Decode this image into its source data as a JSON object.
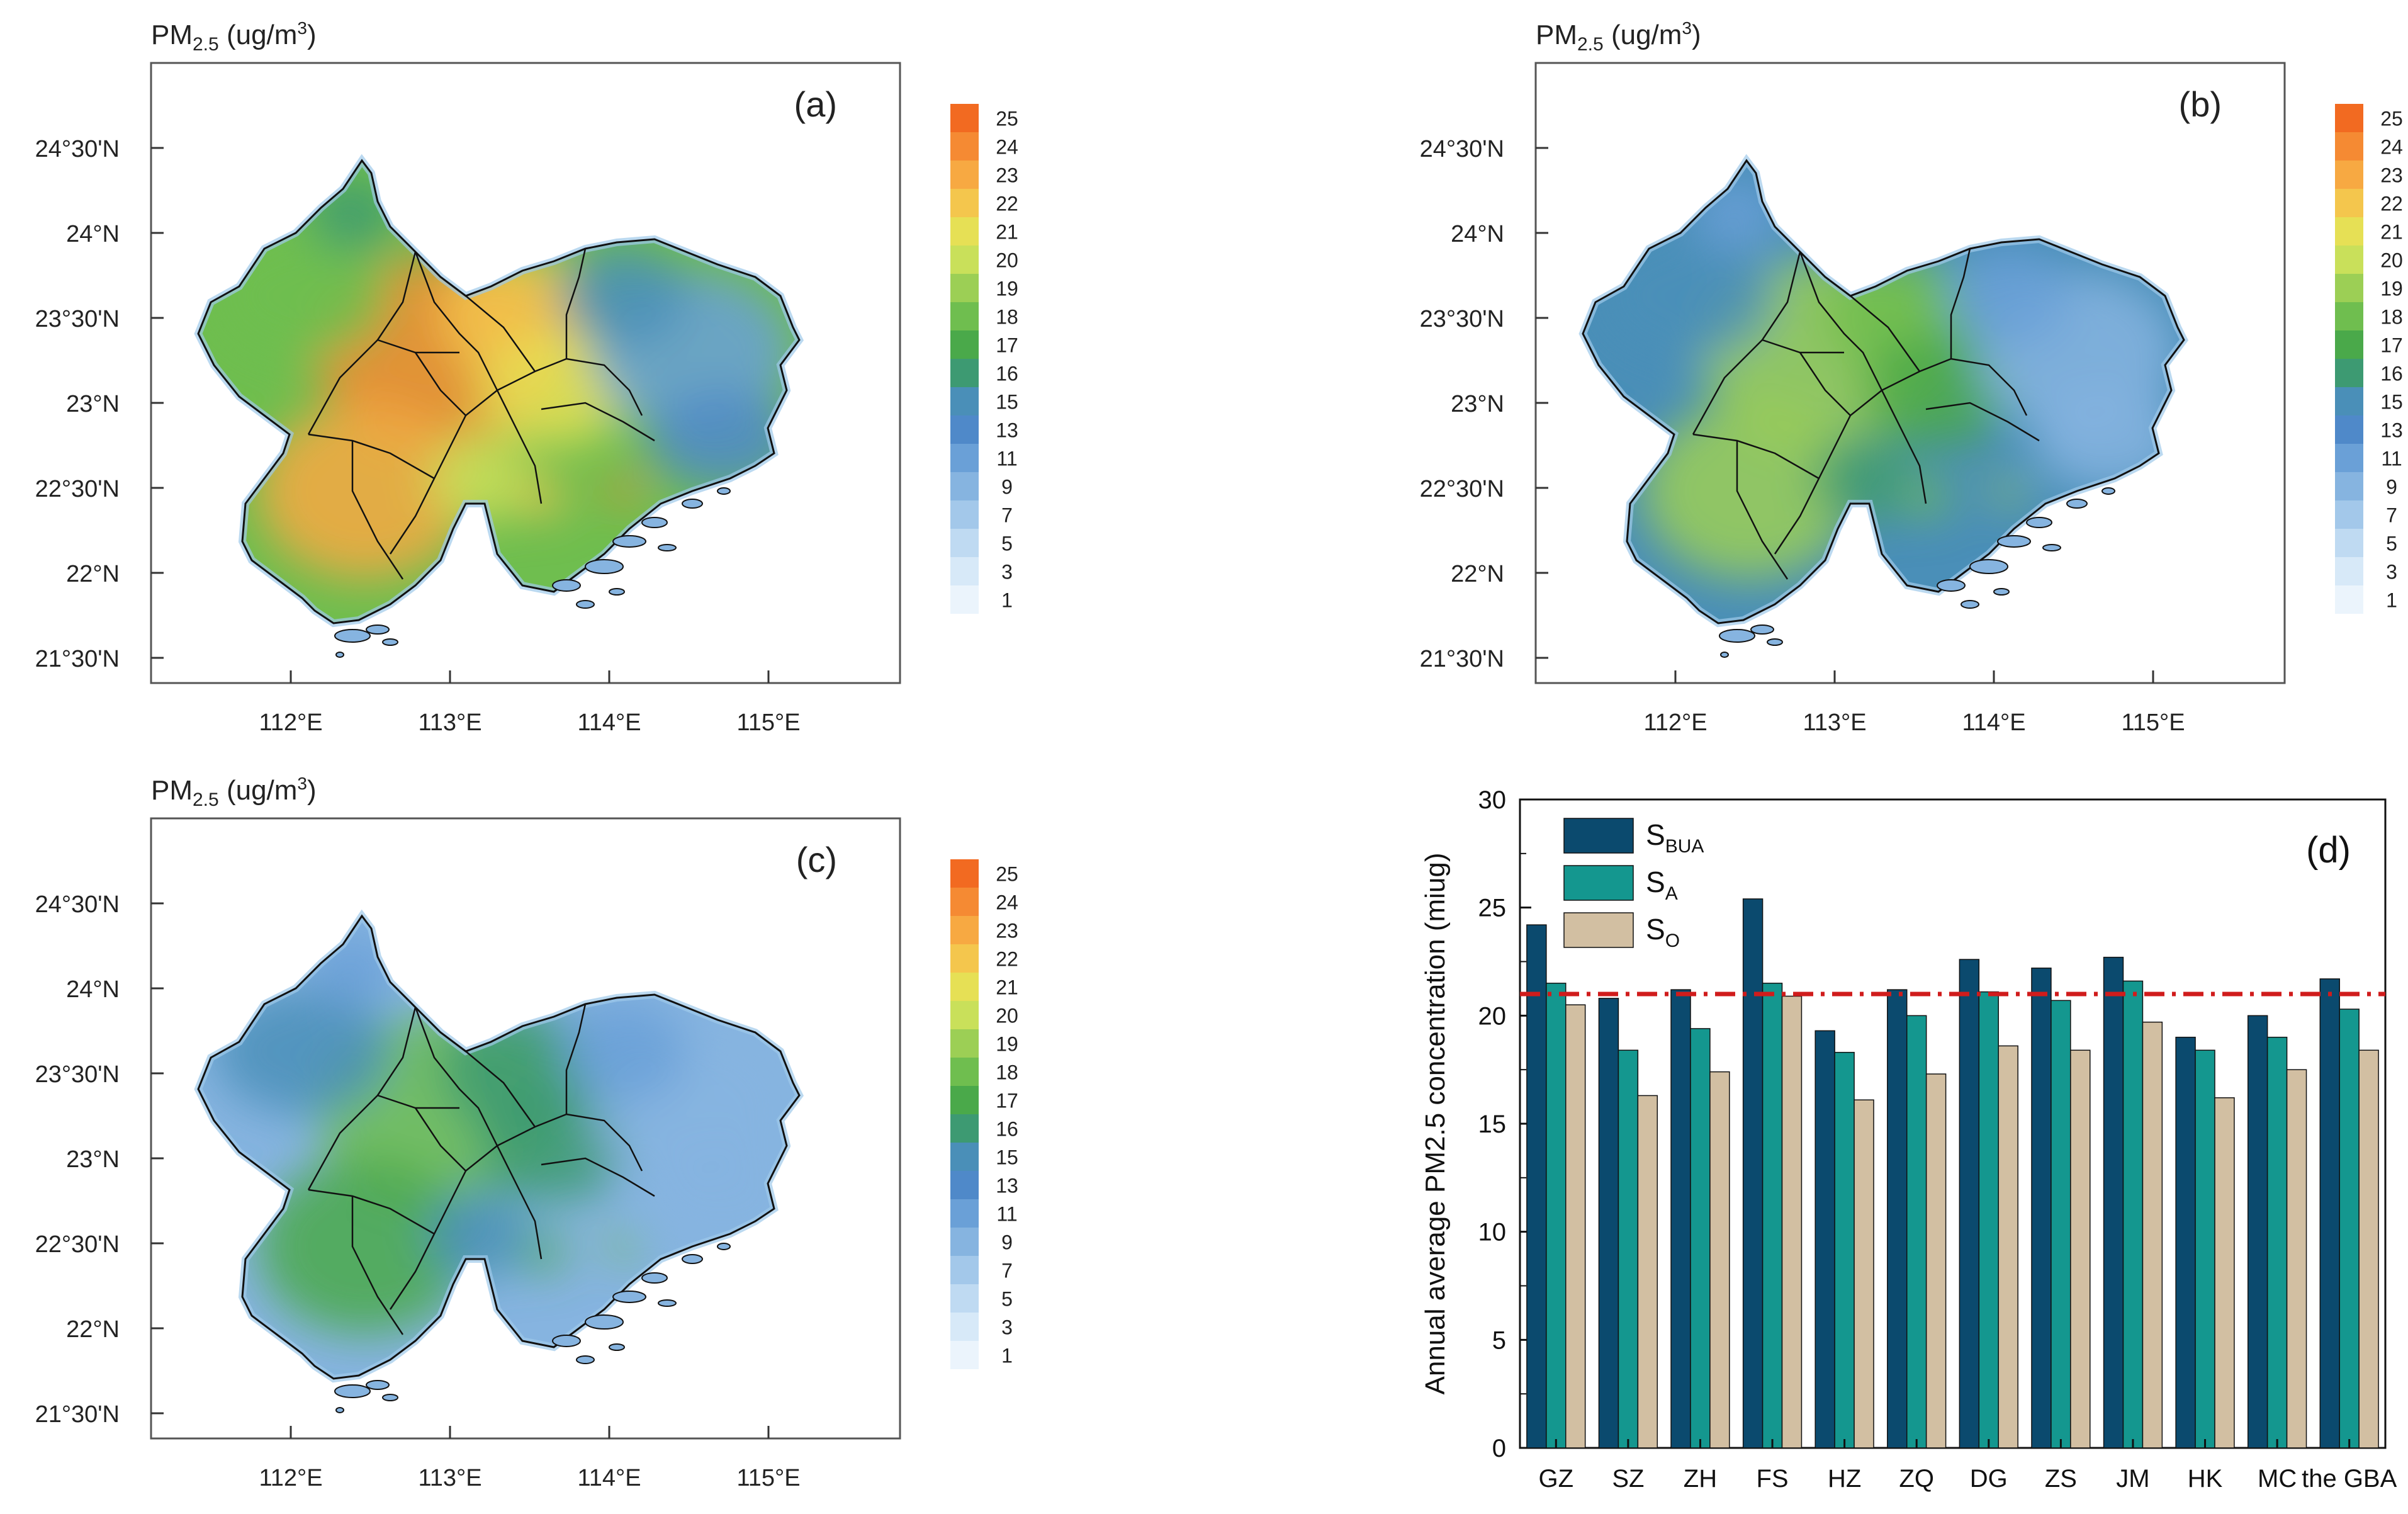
{
  "maps": [
    {
      "id": "a",
      "tag": "(a)",
      "title_main": "PM",
      "title_sub": "2.5",
      "title_unit": " (ug/m",
      "title_sup": "3",
      "title_end": ")",
      "intensity": 1.0
    },
    {
      "id": "b",
      "tag": "(b)",
      "title_main": "PM",
      "title_sub": "2.5",
      "title_unit": " (ug/m",
      "title_sup": "3",
      "title_end": ")",
      "intensity": 0.55
    },
    {
      "id": "c",
      "tag": "(c)",
      "title_main": "PM",
      "title_sub": "2.5",
      "title_unit": " (ug/m",
      "title_sup": "3",
      "title_end": ")",
      "intensity": 0.25
    }
  ],
  "map_axes": {
    "lat_labels": [
      "24°30'N",
      "24°N",
      "23°30'N",
      "23°N",
      "22°30'N",
      "22°N",
      "21°30'N"
    ],
    "lon_labels": [
      "112°E",
      "113°E",
      "114°E",
      "115°E"
    ]
  },
  "colorbar": {
    "labels": [
      "25",
      "24",
      "23",
      "22",
      "21",
      "20",
      "19",
      "18",
      "17",
      "16",
      "15",
      "13",
      "11",
      "9",
      "7",
      "5",
      "3",
      "1"
    ],
    "colors": [
      "#f26a21",
      "#f58a33",
      "#f7a942",
      "#f4c64d",
      "#e6e055",
      "#c9e05a",
      "#9ccf55",
      "#6fbe4f",
      "#4aa94a",
      "#3d9a72",
      "#4a8fb8",
      "#4f89c9",
      "#6aa0d7",
      "#86b4e0",
      "#a3c8ea",
      "#bfdaf2",
      "#d7e9f8",
      "#ebf4fc"
    ]
  },
  "chart_data": {
    "type": "bar",
    "tag": "(d)",
    "categories": [
      "GZ",
      "SZ",
      "ZH",
      "FS",
      "HZ",
      "ZQ",
      "DG",
      "ZS",
      "JM",
      "HK",
      "MC",
      "the GBA"
    ],
    "series": [
      {
        "name": "S",
        "sub": "BUA",
        "color": "#0b4a6e",
        "values": [
          24.2,
          20.8,
          21.2,
          25.4,
          19.3,
          21.2,
          22.6,
          22.2,
          22.7,
          19.0,
          20.0,
          21.7
        ]
      },
      {
        "name": "S",
        "sub": "A",
        "color": "#14978f",
        "values": [
          21.5,
          18.4,
          19.4,
          21.5,
          18.3,
          20.0,
          21.1,
          20.7,
          21.6,
          18.4,
          19.0,
          20.3
        ]
      },
      {
        "name": "S",
        "sub": "O",
        "color": "#d2bfa2",
        "values": [
          20.5,
          16.3,
          17.4,
          20.9,
          16.1,
          17.3,
          18.6,
          18.4,
          19.7,
          16.2,
          17.5,
          18.4
        ]
      }
    ],
    "ylabel": "Annual average PM2.5 concentration (miug)",
    "ylim": [
      0,
      30
    ],
    "yticks": [
      0,
      5,
      10,
      15,
      20,
      25,
      30
    ],
    "reference_line": {
      "value": 21,
      "color": "#d01c1c",
      "style": "dash-dot"
    }
  }
}
